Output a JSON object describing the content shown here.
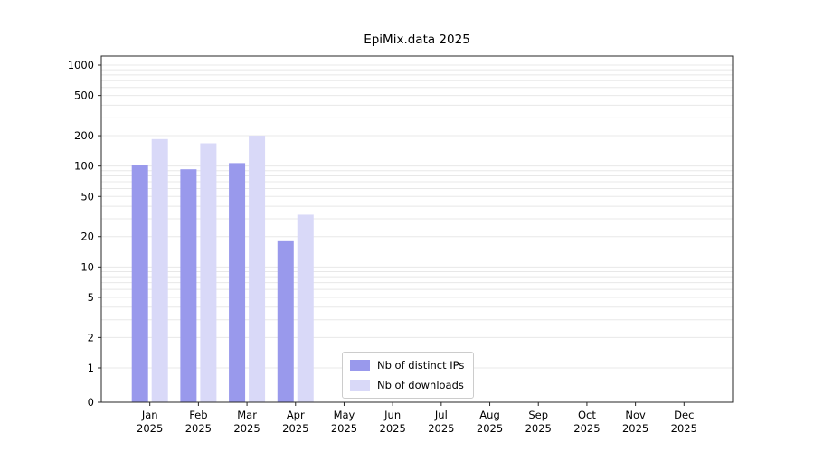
{
  "chart_data": {
    "type": "bar",
    "title": "EpiMix.data 2025",
    "yscale": "symlog",
    "grid": "horizontal-minor",
    "categories": [
      "Jan",
      "Feb",
      "Mar",
      "Apr",
      "May",
      "Jun",
      "Jul",
      "Aug",
      "Sep",
      "Oct",
      "Nov",
      "Dec"
    ],
    "year_label": "2025",
    "series": [
      {
        "name": "Nb of distinct IPs",
        "color": "#9999ec",
        "values": [
          103,
          93,
          107,
          18,
          0,
          0,
          0,
          0,
          0,
          0,
          0,
          0
        ]
      },
      {
        "name": "Nb of downloads",
        "color": "#d9d9f8",
        "values": [
          185,
          168,
          200,
          33,
          0,
          0,
          0,
          0,
          0,
          0,
          0,
          0
        ]
      }
    ],
    "yticks": [
      0,
      1,
      2,
      5,
      10,
      20,
      50,
      100,
      200,
      500,
      1000
    ],
    "ylim": [
      0,
      1200
    ],
    "legend_position": "lower-center-inside"
  }
}
